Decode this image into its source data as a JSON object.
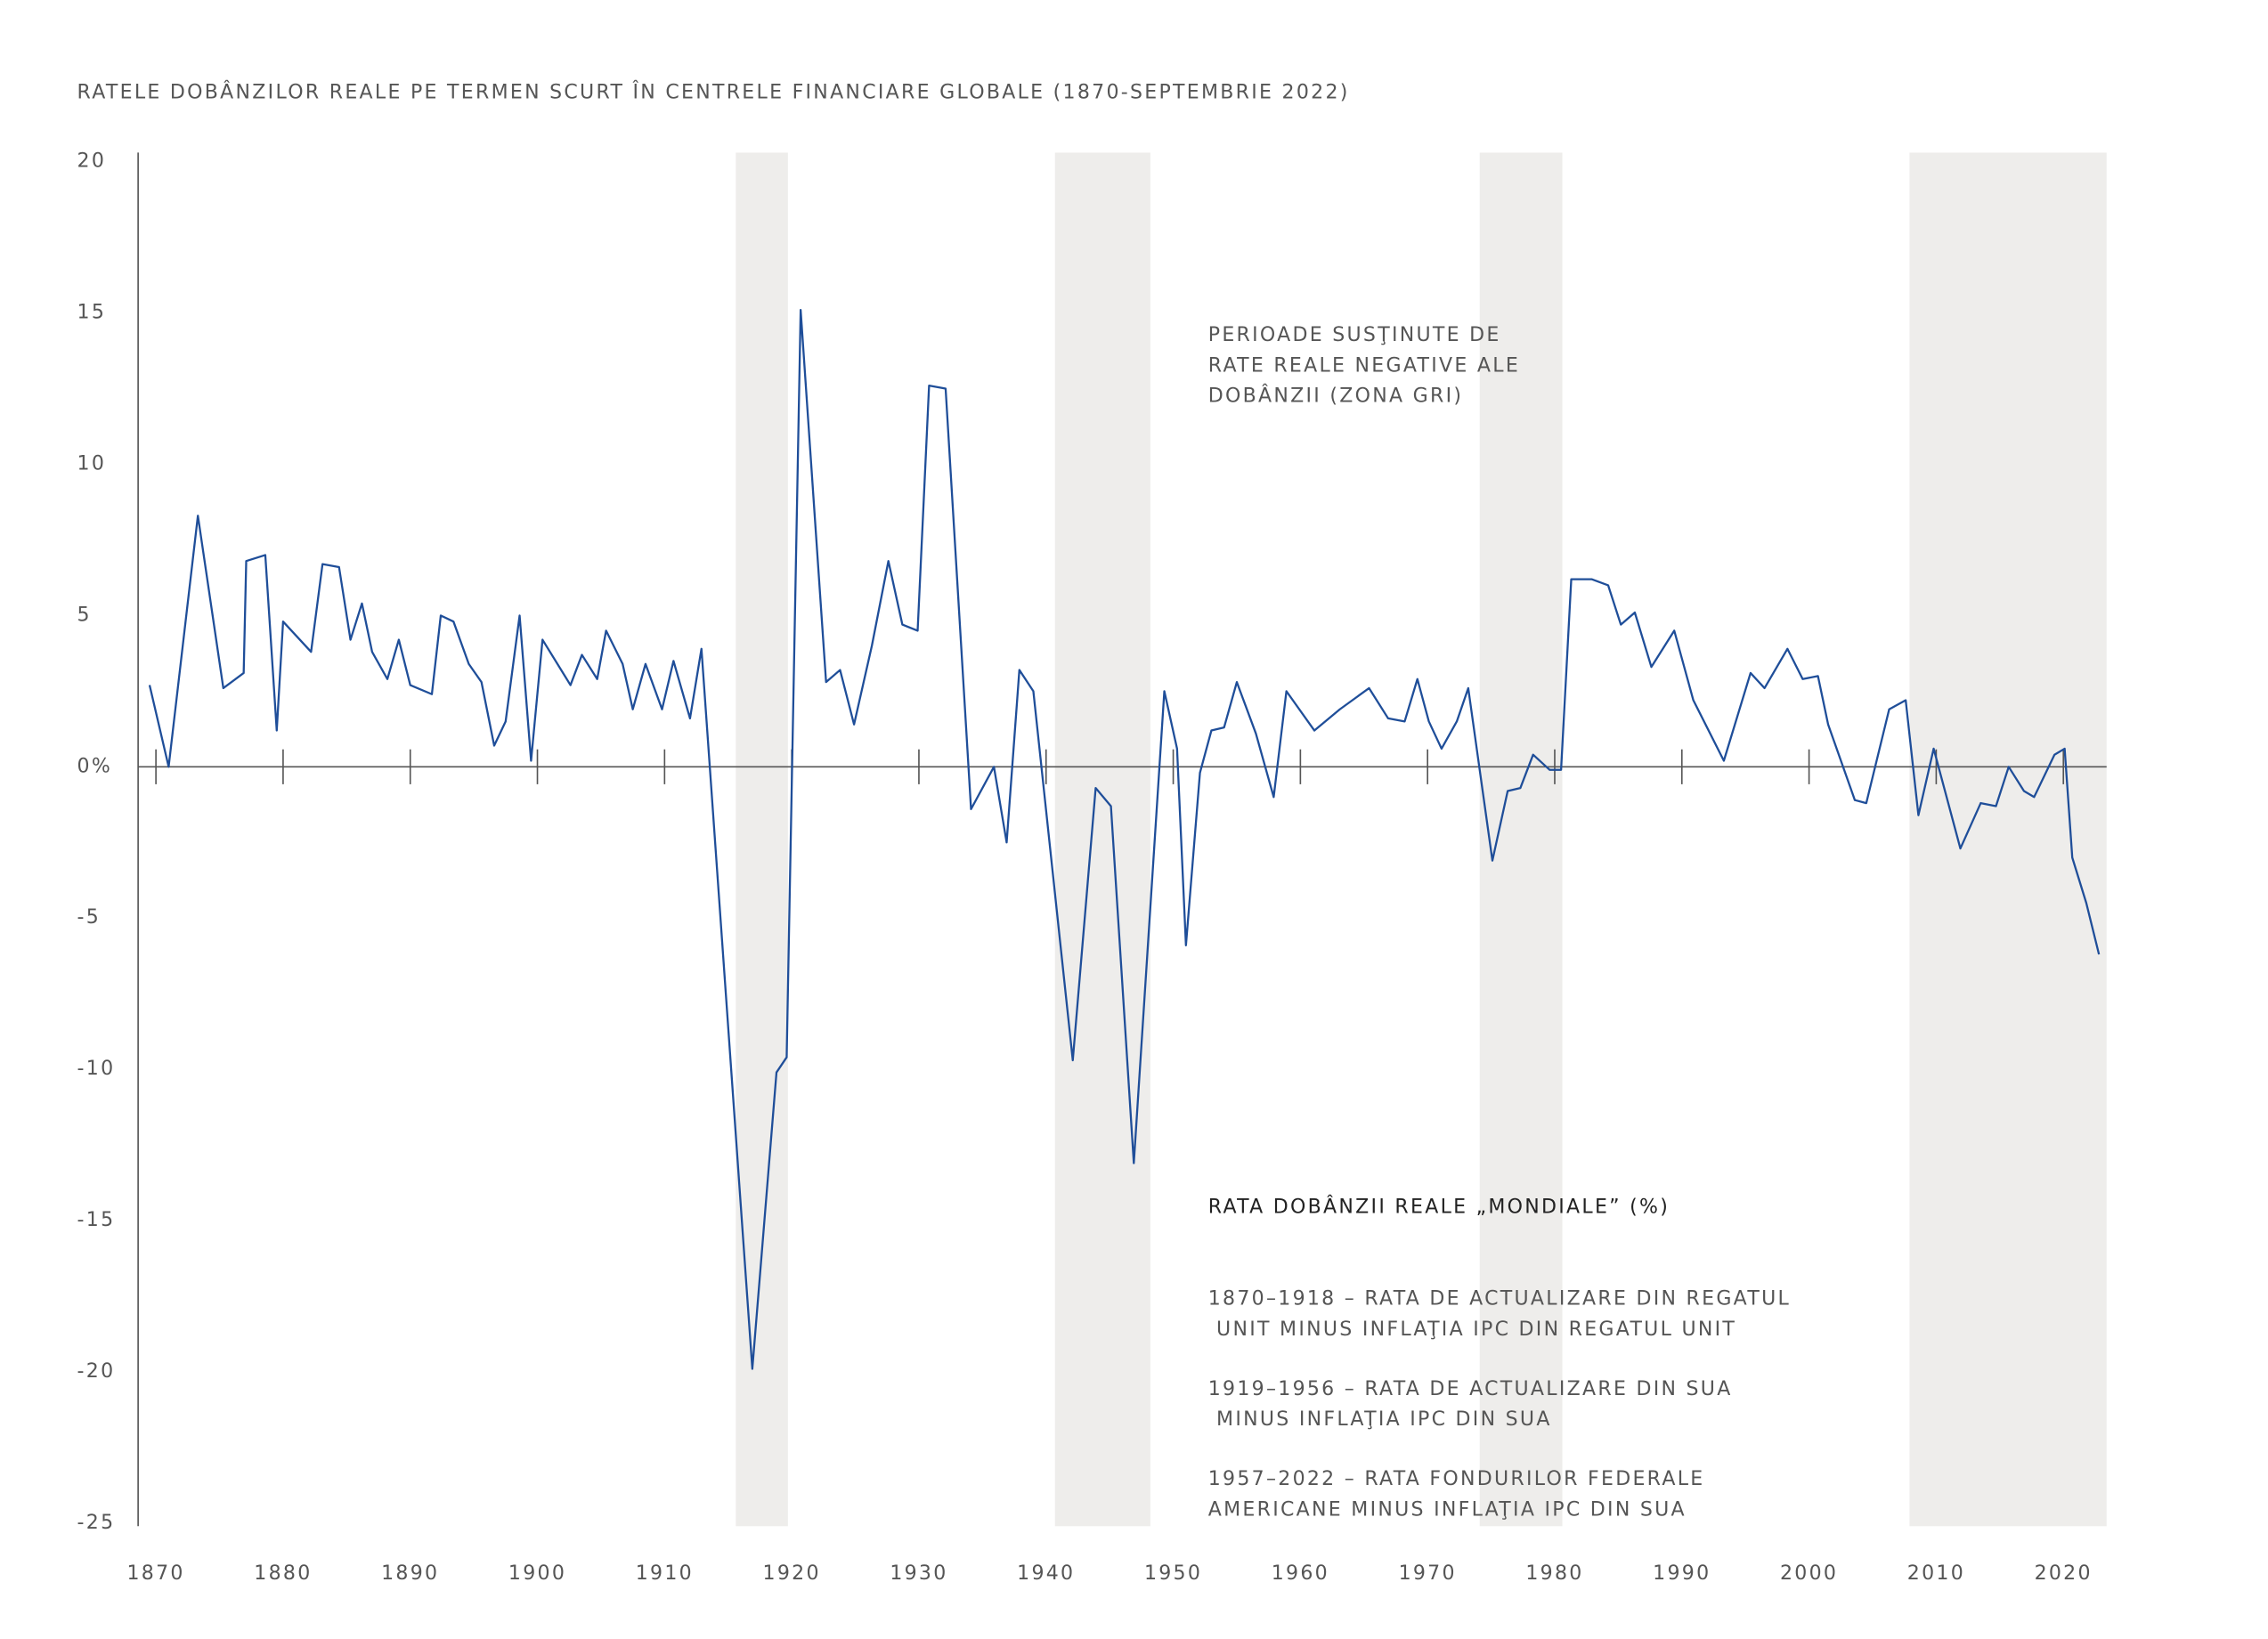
{
  "chart_data": {
    "type": "line",
    "title": "RATELE DOBÂNZILOR REALE PE TERMEN SCURT ÎN CENTRELE FINANCIARE GLOBALE (1870-SEPTEMBRIE 2022)",
    "annotation": [
      "PERIOADE SUSŢINUTE DE",
      "RATE REALE NEGATIVE ALE",
      "DOBÂNZII (ZONA GRI)"
    ],
    "series": [
      {
        "name": "RATA DOBÂNZII REALE „MONDIALE” (%)",
        "color": "#1f4e99",
        "x": [
          1869.5,
          1871,
          1873.3,
          1875.3,
          1876.9,
          1877.1,
          1878.6,
          1879.5,
          1880,
          1882.2,
          1883.1,
          1884.4,
          1885.3,
          1886.2,
          1887,
          1888.2,
          1889.1,
          1890,
          1891.7,
          1892.4,
          1893.4,
          1894.6,
          1895.6,
          1896.6,
          1897.5,
          1898.6,
          1899.5,
          1900.4,
          1902.6,
          1903.5,
          1904.7,
          1905.4,
          1906.7,
          1907.5,
          1908.5,
          1909.8,
          1910.7,
          1912,
          1912.9,
          1916.9,
          1918.8,
          1919.6,
          1920.7,
          1922.7,
          1923.8,
          1924.9,
          1926.3,
          1927.6,
          1928.7,
          1929.9,
          1930.8,
          1932.1,
          1934.1,
          1935.9,
          1936.9,
          1937.9,
          1939,
          1942.1,
          1943.9,
          1945.1,
          1946.9,
          1949.3,
          1950.3,
          1951,
          1952.1,
          1953,
          1954,
          1955,
          1956.5,
          1957.9,
          1958.9,
          1961.1,
          1963.1,
          1965.4,
          1966.9,
          1968.2,
          1969.2,
          1970.1,
          1971.1,
          1972.3,
          1973.2,
          1975.1,
          1976.3,
          1977.3,
          1978.3,
          1979.6,
          1980.5,
          1981.3,
          1982.9,
          1984.2,
          1985.2,
          1986.3,
          1987.6,
          1989.4,
          1990.9,
          1993.3,
          1995.4,
          1996.5,
          1998.3,
          1999.5,
          2000.7,
          2001.5,
          2003.6,
          2004.5,
          2006.3,
          2007.6,
          2008.6,
          2009.8,
          2011.9,
          2013.5,
          2014.7,
          2015.7,
          2016.9,
          2017.7,
          2019.3,
          2020.1,
          2020.7,
          2021.8,
          2022.8
        ],
        "values": [
          2.7,
          0,
          8.3,
          2.6,
          3.1,
          6.8,
          7.0,
          1.2,
          4.8,
          3.8,
          6.7,
          6.6,
          4.2,
          5.4,
          3.8,
          2.9,
          4.2,
          2.7,
          2.4,
          5.0,
          4.8,
          3.4,
          2.8,
          0.7,
          1.5,
          5.0,
          0.2,
          4.2,
          2.7,
          3.7,
          2.9,
          4.5,
          3.4,
          1.9,
          3.4,
          1.9,
          3.5,
          1.6,
          3.9,
          -19.9,
          -10.1,
          -9.6,
          15.1,
          2.8,
          3.2,
          1.4,
          4.0,
          6.8,
          4.7,
          4.5,
          12.6,
          12.5,
          -1.4,
          0,
          -2.5,
          3.2,
          2.5,
          -9.7,
          -0.7,
          -1.3,
          -13.1,
          2.5,
          0.6,
          -5.9,
          -0.2,
          1.2,
          1.3,
          2.8,
          1.1,
          -1.0,
          2.5,
          1.2,
          1.9,
          2.6,
          1.6,
          1.5,
          2.9,
          1.5,
          0.6,
          1.5,
          2.6,
          -3.1,
          -0.8,
          -0.7,
          0.4,
          -0.1,
          -0.1,
          6.2,
          6.2,
          6.0,
          4.7,
          5.1,
          3.3,
          4.5,
          2.2,
          0.2,
          3.1,
          2.6,
          3.9,
          2.9,
          3.0,
          1.4,
          -1.1,
          -1.2,
          1.9,
          2.2,
          -1.6,
          0.6,
          -2.7,
          -1.2,
          -1.3,
          0,
          -0.8,
          -1.0,
          0.4,
          0.6,
          -3.0,
          -4.5,
          -6.2
        ]
      }
    ],
    "notes": [
      [
        "1870–1918 – RATA DE ACTUALIZARE DIN REGATUL",
        " UNIT MINUS INFLAŢIA IPC DIN REGATUL UNIT"
      ],
      [
        "1919–1956 – RATA DE ACTUALIZARE DIN SUA",
        " MINUS INFLAŢIA IPC DIN SUA"
      ],
      [
        "1957–2022 – RATA FONDURILOR FEDERALE",
        "AMERICANE MINUS INFLAŢIA IPC DIN SUA"
      ]
    ],
    "shaded_periods": [
      [
        1915.6,
        1919.7
      ],
      [
        1940.7,
        1948.2
      ],
      [
        1974.1,
        1980.6
      ],
      [
        2007.9,
        2023.4
      ]
    ],
    "shade_color": "#eeedeb",
    "xlim": [
      1868.6,
      2023.4
    ],
    "xticks": [
      1870,
      1880,
      1890,
      1900,
      1910,
      1920,
      1930,
      1940,
      1950,
      1960,
      1970,
      1980,
      1990,
      2000,
      2010,
      2020
    ],
    "ylim": [
      -25.1,
      20.3
    ],
    "yticks": [
      -25,
      -20,
      -15,
      -10,
      -5,
      {
        "value": 0,
        "label": "0%"
      },
      5,
      10,
      15,
      20
    ]
  }
}
